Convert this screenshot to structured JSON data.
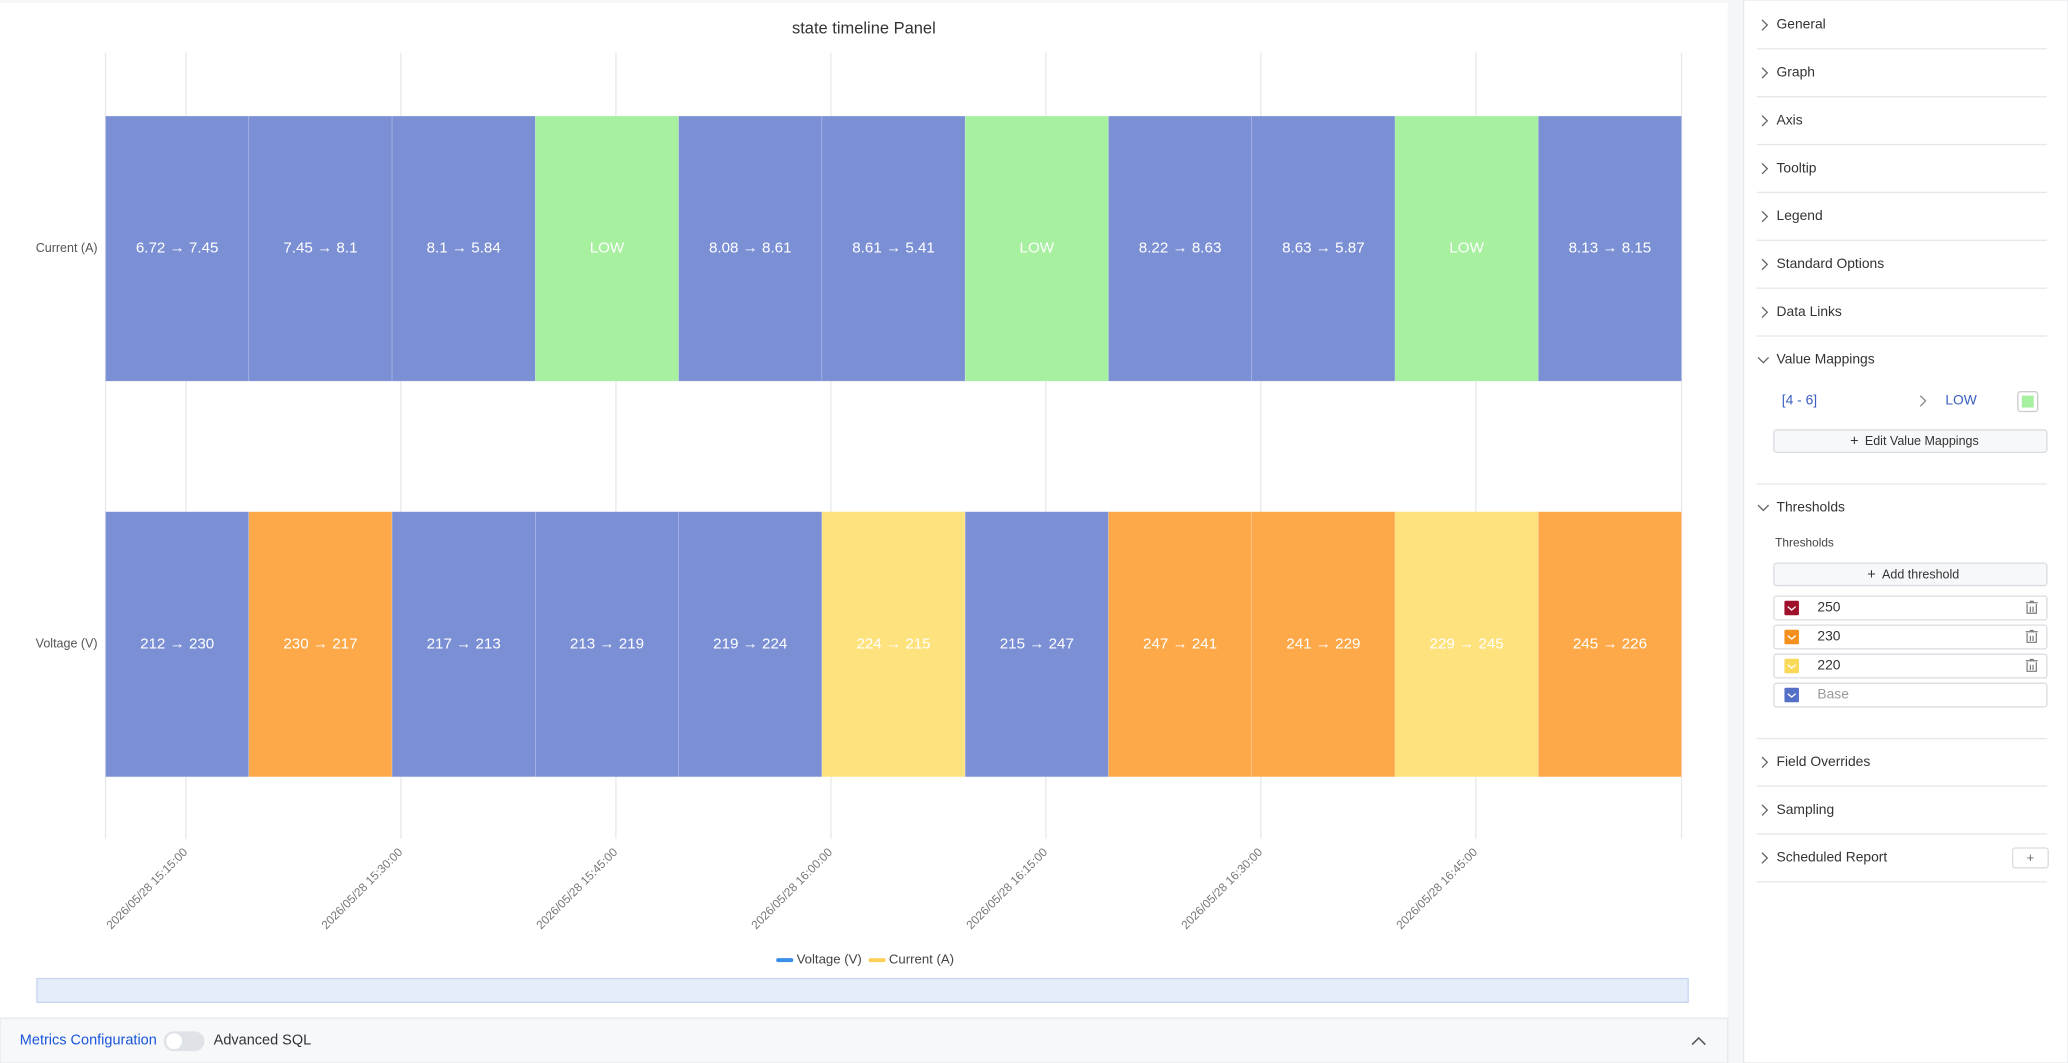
{
  "chart_data": {
    "type": "state-timeline",
    "title": "state timeline Panel",
    "rows": [
      {
        "name": "Current (A)",
        "segments": [
          {
            "label": "6.72 → 7.45",
            "color": "#7b8fd4"
          },
          {
            "label": "7.45 → 8.1",
            "color": "#7b8fd4"
          },
          {
            "label": "8.1 → 5.84",
            "color": "#7b8fd4"
          },
          {
            "label": "LOW",
            "color": "#a6f0a0"
          },
          {
            "label": "8.08 → 8.61",
            "color": "#7b8fd4"
          },
          {
            "label": "8.61 → 5.41",
            "color": "#7b8fd4"
          },
          {
            "label": "LOW",
            "color": "#a6f0a0"
          },
          {
            "label": "8.22 → 8.63",
            "color": "#7b8fd4"
          },
          {
            "label": "8.63 → 5.87",
            "color": "#7b8fd4"
          },
          {
            "label": "LOW",
            "color": "#a6f0a0"
          },
          {
            "label": "8.13 → 8.15",
            "color": "#7b8fd4"
          }
        ]
      },
      {
        "name": "Voltage (V)",
        "segments": [
          {
            "label": "212 → 230",
            "color": "#7b8fd4"
          },
          {
            "label": "230 → 217",
            "color": "#fda94a"
          },
          {
            "label": "217 → 213",
            "color": "#7b8fd4"
          },
          {
            "label": "213 → 219",
            "color": "#7b8fd4"
          },
          {
            "label": "219 → 224",
            "color": "#7b8fd4"
          },
          {
            "label": "224 → 215",
            "color": "#fde27e"
          },
          {
            "label": "215 → 247",
            "color": "#7b8fd4"
          },
          {
            "label": "247 → 241",
            "color": "#fda94a"
          },
          {
            "label": "241 → 229",
            "color": "#fda94a"
          },
          {
            "label": "229 → 245",
            "color": "#fde27e"
          },
          {
            "label": "245 → 226",
            "color": "#fda94a"
          }
        ]
      }
    ],
    "x": [
      "2026/05/28 15:15:00",
      "2026/05/28 15:30:00",
      "2026/05/28 15:45:00",
      "2026/05/28 16:00:00",
      "2026/05/28 16:15:00",
      "2026/05/28 16:30:00",
      "2026/05/28 16:45:00"
    ],
    "legend": [
      {
        "name": "Voltage (V)",
        "color": "#3b8fe8"
      },
      {
        "name": "Current (A)",
        "color": "#fdd05a"
      }
    ]
  },
  "bottom_bar": {
    "link": "Metrics Configuration",
    "toggle_label": "Advanced SQL"
  },
  "sidebar": {
    "sections_top": [
      "General",
      "Graph",
      "Axis",
      "Tooltip",
      "Legend",
      "Standard Options",
      "Data Links"
    ],
    "value_mappings": {
      "title": "Value Mappings",
      "range": "[4 - 6]",
      "result": "LOW",
      "color": "#a6f0a0",
      "button": "Edit Value Mappings"
    },
    "thresholds": {
      "title": "Thresholds",
      "label": "Thresholds",
      "button": "Add threshold",
      "items": [
        {
          "value": "250",
          "color": "#a0112b"
        },
        {
          "value": "230",
          "color": "#f5901e"
        },
        {
          "value": "220",
          "color": "#fad858"
        },
        {
          "value": "Base",
          "color": "#5470c6"
        }
      ]
    },
    "sections_bottom": [
      "Field Overrides",
      "Sampling",
      "Scheduled Report"
    ]
  }
}
